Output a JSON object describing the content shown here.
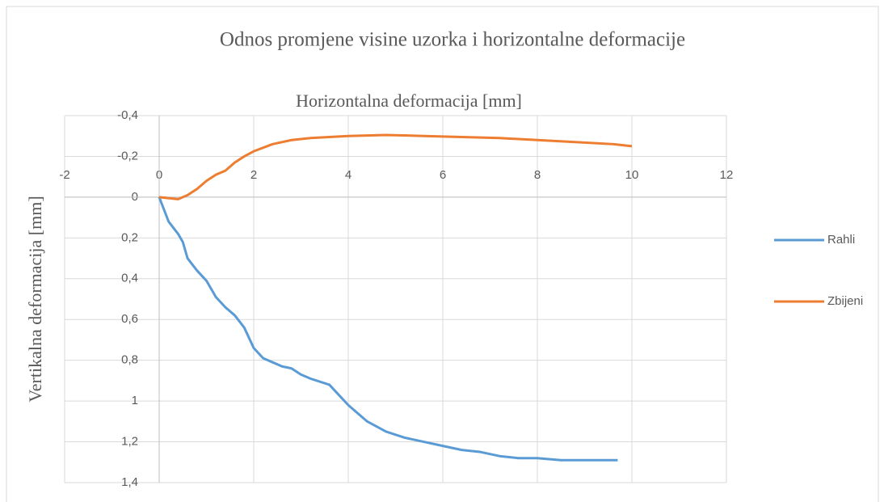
{
  "chart_data": {
    "type": "line",
    "title": "Odnos promjene visine uzorka i horizontalne deformacije",
    "x_label": "Horizontalna deformacija [mm]",
    "y_label": "Vertikalna deformacija [mm]",
    "xlim": [
      -2,
      12
    ],
    "xticks": [
      -2,
      0,
      2,
      4,
      6,
      8,
      10,
      12
    ],
    "ylim": [
      -0.4,
      1.4
    ],
    "y_inverted": true,
    "yticks": [
      {
        "value": -0.4,
        "label": "-0,4"
      },
      {
        "value": -0.2,
        "label": "-0,2"
      },
      0,
      {
        "value": 0.2,
        "label": "0,2"
      },
      {
        "value": 0.4,
        "label": "0,4"
      },
      {
        "value": 0.6,
        "label": "0,6"
      },
      {
        "value": 0.8,
        "label": "0,8"
      },
      1,
      {
        "value": 1.2,
        "label": "1,2"
      },
      {
        "value": 1.4,
        "label": "1,4"
      }
    ],
    "grid": true,
    "legend": "right",
    "series": [
      {
        "name": "Rahli",
        "color": "#5b9bd5",
        "x": [
          0,
          0.2,
          0.4,
          0.5,
          0.6,
          0.8,
          1.0,
          1.2,
          1.4,
          1.6,
          1.8,
          2.0,
          2.2,
          2.4,
          2.6,
          2.8,
          3.0,
          3.2,
          3.6,
          4.0,
          4.4,
          4.8,
          5.2,
          5.6,
          6.0,
          6.4,
          6.8,
          7.2,
          7.6,
          8.0,
          8.5,
          9.0,
          9.7
        ],
        "values": [
          0,
          0.12,
          0.18,
          0.22,
          0.3,
          0.36,
          0.41,
          0.49,
          0.54,
          0.58,
          0.64,
          0.74,
          0.79,
          0.81,
          0.83,
          0.84,
          0.87,
          0.89,
          0.92,
          1.02,
          1.1,
          1.15,
          1.18,
          1.2,
          1.22,
          1.24,
          1.25,
          1.27,
          1.28,
          1.28,
          1.29,
          1.29,
          1.29
        ]
      },
      {
        "name": "Zbijeni",
        "color": "#ed7d31",
        "x": [
          0,
          0.4,
          0.6,
          0.8,
          1.0,
          1.2,
          1.4,
          1.6,
          1.8,
          2.0,
          2.4,
          2.8,
          3.2,
          3.6,
          4.0,
          4.8,
          5.6,
          6.4,
          7.2,
          8.0,
          8.8,
          9.6,
          10.0
        ],
        "values": [
          0,
          0.01,
          -0.01,
          -0.04,
          -0.08,
          -0.11,
          -0.13,
          -0.17,
          -0.2,
          -0.225,
          -0.26,
          -0.28,
          -0.29,
          -0.295,
          -0.3,
          -0.305,
          -0.3,
          -0.295,
          -0.29,
          -0.28,
          -0.27,
          -0.26,
          -0.25
        ]
      }
    ]
  }
}
